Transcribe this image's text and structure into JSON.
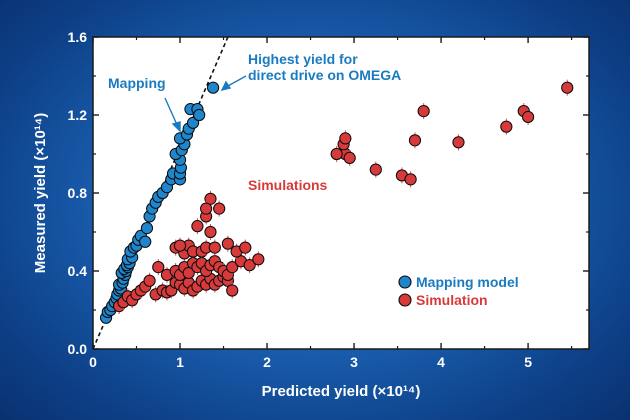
{
  "chart_data": {
    "type": "scatter",
    "xlabel": "Predicted yield (×10¹⁴)",
    "ylabel": "Measured yield (×10¹⁴)",
    "xlim": [
      0,
      5.7
    ],
    "ylim": [
      0,
      1.6
    ],
    "x_ticks": [
      "0",
      "1",
      "2",
      "3",
      "4",
      "5"
    ],
    "y_ticks": [
      "0.0",
      "0.4",
      "0.8",
      "1.2",
      "1.6"
    ],
    "grid": false,
    "legend_position": "lower-right",
    "trend_line": {
      "style": "dashed",
      "from": [
        0,
        0
      ],
      "to": [
        1.55,
        1.6
      ]
    },
    "series": [
      {
        "name": "Mapping model",
        "color": "#1f86cc",
        "points": [
          [
            0.15,
            0.16
          ],
          [
            0.17,
            0.19
          ],
          [
            0.2,
            0.2
          ],
          [
            0.22,
            0.22
          ],
          [
            0.25,
            0.24
          ],
          [
            0.27,
            0.26
          ],
          [
            0.28,
            0.28
          ],
          [
            0.3,
            0.3
          ],
          [
            0.32,
            0.31
          ],
          [
            0.3,
            0.33
          ],
          [
            0.34,
            0.34
          ],
          [
            0.35,
            0.36
          ],
          [
            0.37,
            0.38
          ],
          [
            0.33,
            0.39
          ],
          [
            0.38,
            0.4
          ],
          [
            0.36,
            0.41
          ],
          [
            0.4,
            0.42
          ],
          [
            0.39,
            0.43
          ],
          [
            0.42,
            0.44
          ],
          [
            0.4,
            0.46
          ],
          [
            0.45,
            0.47
          ],
          [
            0.43,
            0.5
          ],
          [
            0.47,
            0.52
          ],
          [
            0.5,
            0.53
          ],
          [
            0.52,
            0.56
          ],
          [
            0.55,
            0.58
          ],
          [
            0.6,
            0.55
          ],
          [
            0.62,
            0.62
          ],
          [
            0.65,
            0.68
          ],
          [
            0.68,
            0.72
          ],
          [
            0.72,
            0.75
          ],
          [
            0.75,
            0.78
          ],
          [
            0.8,
            0.8
          ],
          [
            0.85,
            0.83
          ],
          [
            0.9,
            0.87
          ],
          [
            0.92,
            0.9
          ],
          [
            1.0,
            0.87
          ],
          [
            1.0,
            0.9
          ],
          [
            1.01,
            0.93
          ],
          [
            1.0,
            0.97
          ],
          [
            0.95,
            1.0
          ],
          [
            1.02,
            1.02
          ],
          [
            1.05,
            1.05
          ],
          [
            1.0,
            1.08
          ],
          [
            1.08,
            1.1
          ],
          [
            1.1,
            1.13
          ],
          [
            1.15,
            1.16
          ],
          [
            1.12,
            1.23
          ],
          [
            1.2,
            1.23
          ],
          [
            1.22,
            1.2
          ],
          [
            1.38,
            1.34
          ]
        ]
      },
      {
        "name": "Simulation",
        "color": "#d63a3a",
        "points": [
          [
            0.3,
            0.22
          ],
          [
            0.35,
            0.24
          ],
          [
            0.4,
            0.27
          ],
          [
            0.45,
            0.25
          ],
          [
            0.5,
            0.28
          ],
          [
            0.55,
            0.3
          ],
          [
            0.6,
            0.32
          ],
          [
            0.65,
            0.35
          ],
          [
            0.72,
            0.28
          ],
          [
            0.8,
            0.3
          ],
          [
            0.85,
            0.29
          ],
          [
            0.9,
            0.3
          ],
          [
            0.95,
            0.34
          ],
          [
            1.0,
            0.33
          ],
          [
            1.05,
            0.31
          ],
          [
            1.1,
            0.34
          ],
          [
            1.15,
            0.3
          ],
          [
            1.2,
            0.32
          ],
          [
            1.25,
            0.35
          ],
          [
            1.3,
            0.33
          ],
          [
            1.35,
            0.36
          ],
          [
            1.4,
            0.33
          ],
          [
            1.45,
            0.35
          ],
          [
            1.5,
            0.37
          ],
          [
            1.55,
            0.35
          ],
          [
            1.6,
            0.3
          ],
          [
            0.75,
            0.42
          ],
          [
            0.85,
            0.38
          ],
          [
            0.95,
            0.4
          ],
          [
            1.0,
            0.38
          ],
          [
            1.05,
            0.42
          ],
          [
            1.1,
            0.39
          ],
          [
            1.15,
            0.44
          ],
          [
            1.2,
            0.42
          ],
          [
            1.25,
            0.44
          ],
          [
            1.3,
            0.4
          ],
          [
            1.35,
            0.43
          ],
          [
            1.4,
            0.45
          ],
          [
            1.45,
            0.42
          ],
          [
            1.5,
            0.4
          ],
          [
            1.55,
            0.38
          ],
          [
            1.6,
            0.42
          ],
          [
            1.7,
            0.45
          ],
          [
            1.8,
            0.43
          ],
          [
            1.9,
            0.46
          ],
          [
            1.05,
            0.49
          ],
          [
            1.1,
            0.53
          ],
          [
            1.15,
            0.5
          ],
          [
            1.25,
            0.5
          ],
          [
            1.3,
            0.52
          ],
          [
            1.4,
            0.52
          ],
          [
            1.55,
            0.54
          ],
          [
            1.65,
            0.5
          ],
          [
            1.75,
            0.52
          ],
          [
            0.95,
            0.52
          ],
          [
            1.0,
            0.53
          ],
          [
            1.35,
            0.6
          ],
          [
            1.2,
            0.63
          ],
          [
            1.3,
            0.68
          ],
          [
            1.45,
            0.72
          ],
          [
            1.35,
            0.77
          ],
          [
            1.3,
            0.72
          ],
          [
            2.9,
            1.0
          ],
          [
            2.95,
            0.98
          ],
          [
            2.8,
            1.0
          ],
          [
            2.88,
            1.05
          ],
          [
            2.9,
            1.08
          ],
          [
            3.25,
            0.92
          ],
          [
            3.55,
            0.89
          ],
          [
            3.65,
            0.87
          ],
          [
            3.7,
            1.07
          ],
          [
            3.8,
            1.22
          ],
          [
            4.2,
            1.06
          ],
          [
            4.75,
            1.14
          ],
          [
            4.95,
            1.22
          ],
          [
            5.0,
            1.19
          ],
          [
            5.45,
            1.34
          ]
        ]
      }
    ],
    "annotations": [
      {
        "text": "Mapping",
        "series": "Mapping model"
      },
      {
        "text": "Highest yield for",
        "series": "Mapping model"
      },
      {
        "text": "direct drive on OMEGA",
        "series": "Mapping model"
      },
      {
        "text": "Simulations",
        "series": "Simulation"
      }
    ]
  }
}
